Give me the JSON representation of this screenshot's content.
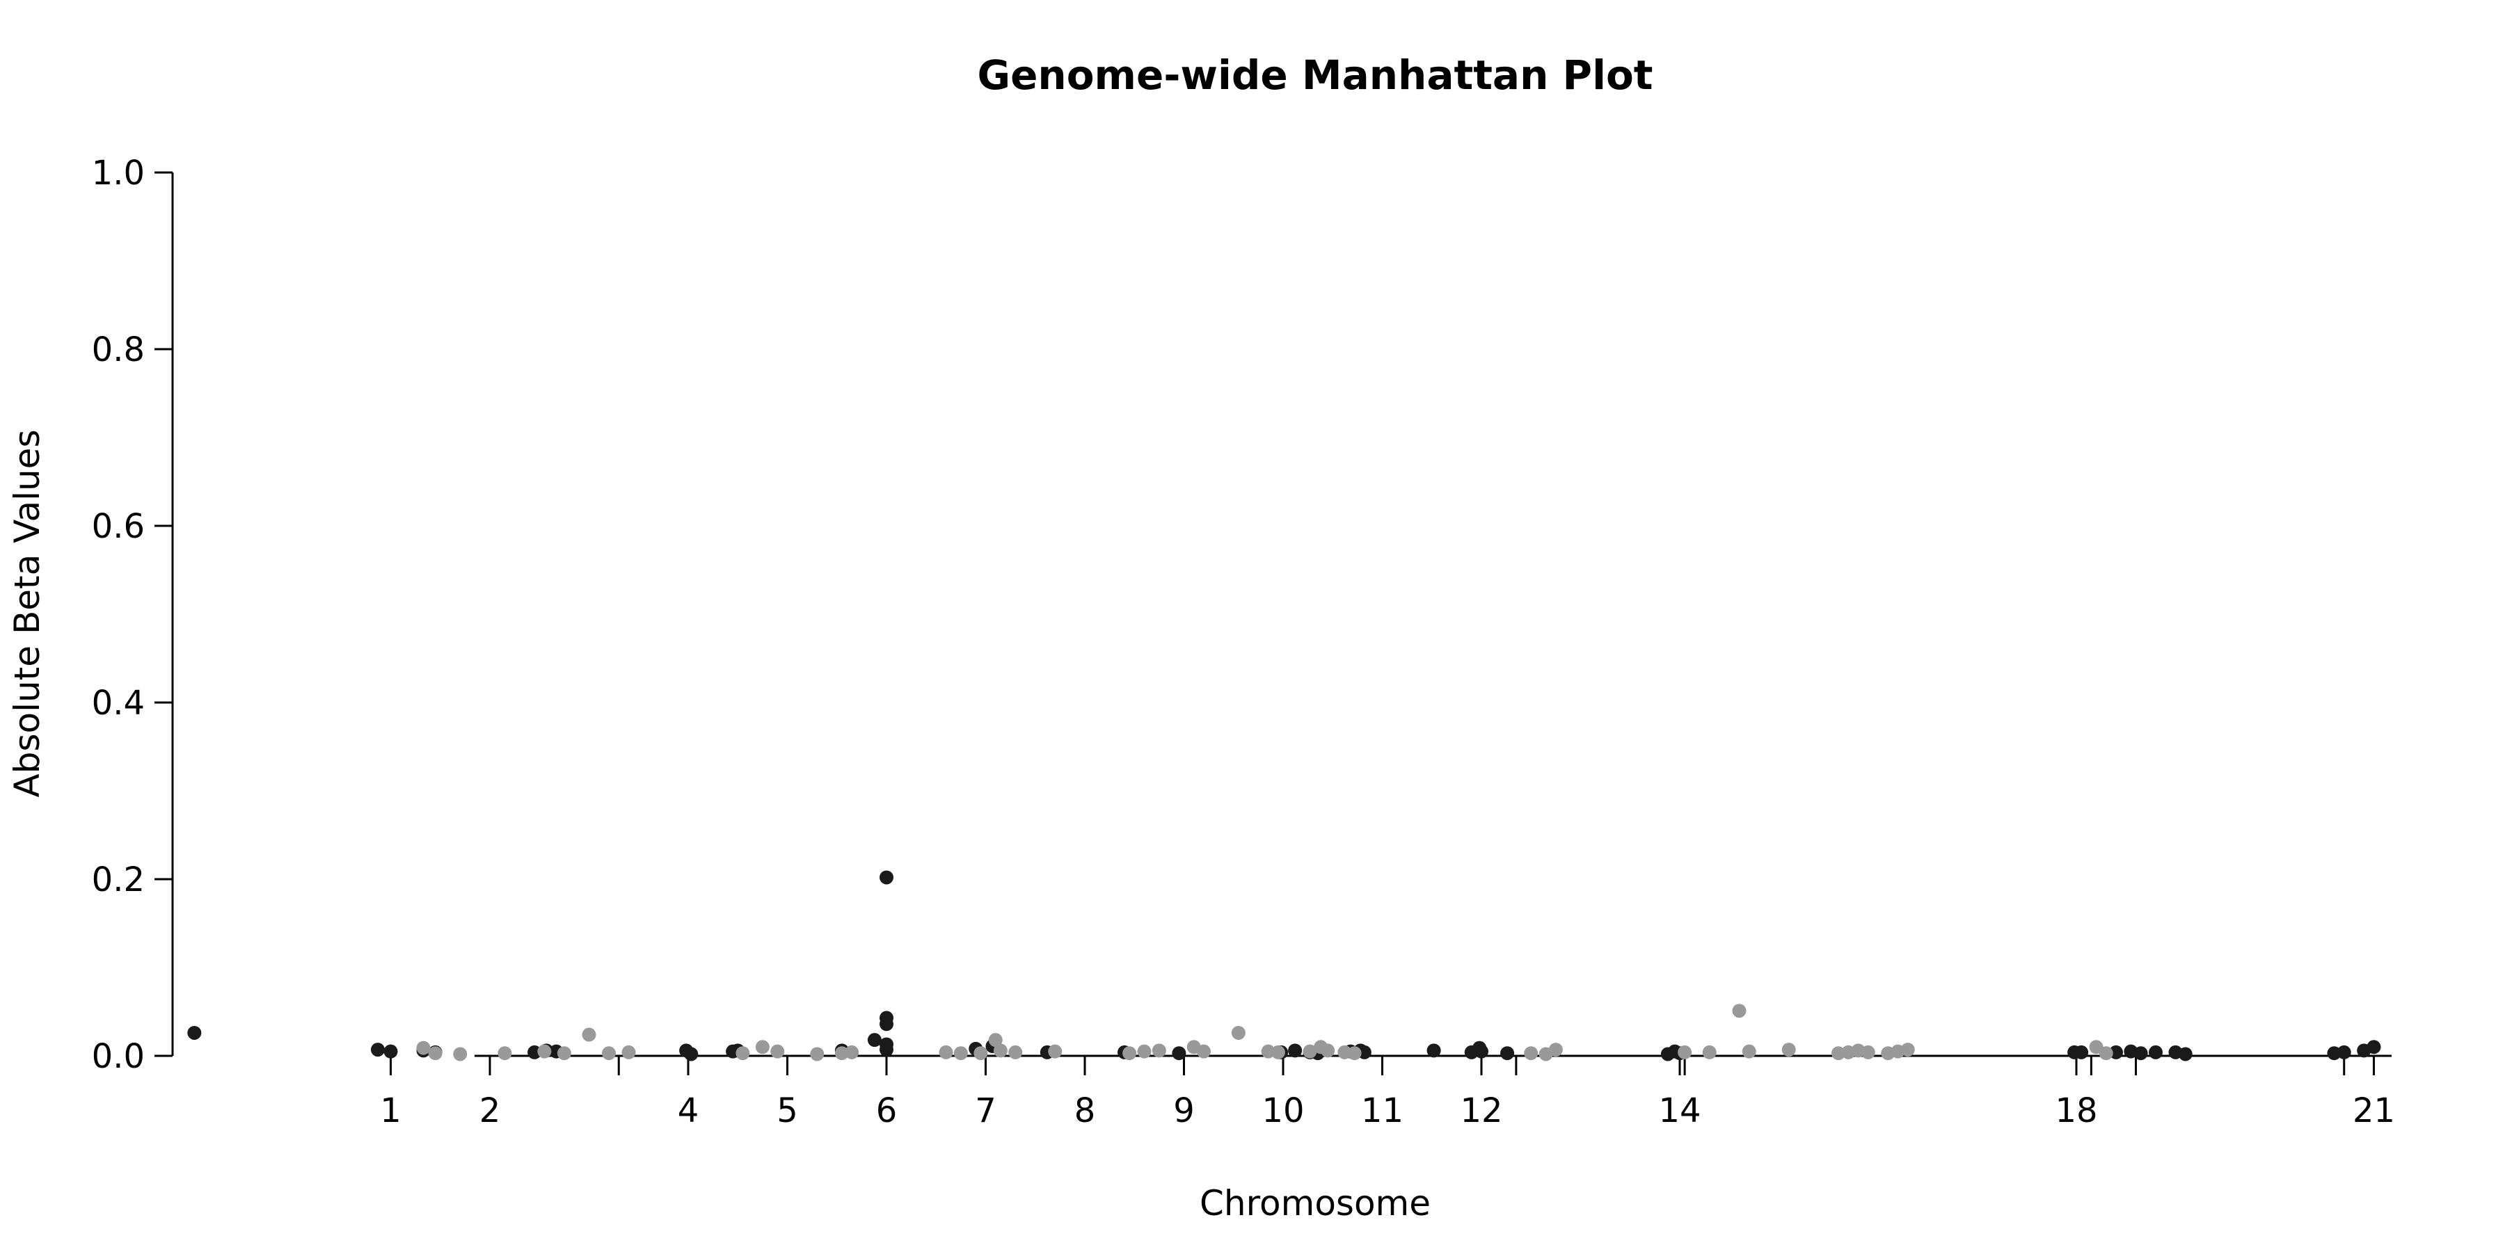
{
  "chart_data": {
    "type": "scatter",
    "title": "Genome-wide Manhattan Plot",
    "xlabel": "Chromosome",
    "ylabel": "Absolute Beta Values",
    "ylim": [
      0,
      1
    ],
    "yticks": [
      "0.0",
      "0.2",
      "0.4",
      "0.6",
      "0.8",
      "1.0"
    ],
    "xlim": [
      -1.2,
      21.2
    ],
    "xticks": [
      {
        "label": "1",
        "pos": 1.0
      },
      {
        "label": "2",
        "pos": 2.0
      },
      {
        "label": "4",
        "pos": 4.0
      },
      {
        "label": "5",
        "pos": 5.0
      },
      {
        "label": "6",
        "pos": 6.0
      },
      {
        "label": "7",
        "pos": 7.0
      },
      {
        "label": "8",
        "pos": 8.0
      },
      {
        "label": "9",
        "pos": 9.0
      },
      {
        "label": "10",
        "pos": 10.0
      },
      {
        "label": "11",
        "pos": 11.0
      },
      {
        "label": "12",
        "pos": 12.0
      },
      {
        "label": "14",
        "pos": 14.0
      },
      {
        "label": "18",
        "pos": 18.0
      },
      {
        "label": "21",
        "pos": 21.0
      }
    ],
    "extra_ticks": [
      3.3,
      12.35,
      14.05,
      18.15,
      18.6,
      20.7
    ],
    "grid": false,
    "colors": {
      "dark": "#1a1a1a",
      "light": "#999999"
    },
    "series": [
      {
        "color": "dark",
        "x": [
          -0.98,
          0.87,
          1.0,
          1.33,
          1.45,
          2.45,
          2.57,
          2.67,
          3.98,
          4.03,
          4.45,
          4.5,
          5.55,
          5.88,
          6.0,
          6.0,
          6.0,
          6.0,
          6.0,
          6.9,
          7.07,
          7.62,
          8.4,
          8.95,
          9.98,
          10.12,
          10.27,
          10.35,
          10.68,
          10.78,
          10.82,
          11.52,
          11.9,
          11.98,
          12.0,
          12.26,
          13.88,
          13.95,
          14.0,
          17.98,
          18.05,
          18.4,
          18.55,
          18.65,
          18.8,
          19.0,
          19.1,
          20.6,
          20.7,
          20.9,
          21.0
        ],
        "y": [
          0.026,
          0.007,
          0.005,
          0.006,
          0.004,
          0.004,
          0.006,
          0.005,
          0.006,
          0.002,
          0.005,
          0.006,
          0.006,
          0.018,
          0.202,
          0.043,
          0.036,
          0.013,
          0.007,
          0.008,
          0.011,
          0.004,
          0.004,
          0.003,
          0.004,
          0.006,
          0.004,
          0.003,
          0.005,
          0.006,
          0.004,
          0.006,
          0.004,
          0.009,
          0.005,
          0.003,
          0.002,
          0.005,
          0.003,
          0.004,
          0.004,
          0.004,
          0.005,
          0.003,
          0.004,
          0.004,
          0.002,
          0.003,
          0.004,
          0.006,
          0.01
        ]
      },
      {
        "color": "light",
        "x": [
          1.33,
          1.45,
          1.7,
          2.15,
          2.55,
          2.75,
          3.0,
          3.2,
          3.4,
          4.55,
          4.75,
          4.9,
          5.3,
          5.55,
          5.65,
          6.6,
          6.75,
          6.95,
          7.1,
          7.15,
          7.3,
          7.7,
          8.45,
          8.6,
          8.75,
          9.1,
          9.2,
          9.55,
          9.85,
          9.95,
          10.27,
          10.38,
          10.45,
          10.62,
          10.72,
          12.5,
          12.65,
          12.75,
          14.05,
          14.3,
          14.6,
          14.7,
          15.1,
          15.6,
          15.7,
          15.8,
          15.9,
          16.1,
          16.2,
          16.3,
          18.2,
          18.3
        ],
        "y": [
          0.009,
          0.003,
          0.002,
          0.003,
          0.005,
          0.003,
          0.024,
          0.003,
          0.004,
          0.003,
          0.01,
          0.005,
          0.002,
          0.003,
          0.004,
          0.004,
          0.003,
          0.003,
          0.018,
          0.006,
          0.004,
          0.005,
          0.003,
          0.005,
          0.006,
          0.01,
          0.005,
          0.026,
          0.005,
          0.004,
          0.005,
          0.01,
          0.006,
          0.004,
          0.003,
          0.003,
          0.002,
          0.007,
          0.004,
          0.004,
          0.051,
          0.005,
          0.007,
          0.003,
          0.004,
          0.006,
          0.004,
          0.003,
          0.005,
          0.007,
          0.01,
          0.003
        ]
      }
    ]
  }
}
